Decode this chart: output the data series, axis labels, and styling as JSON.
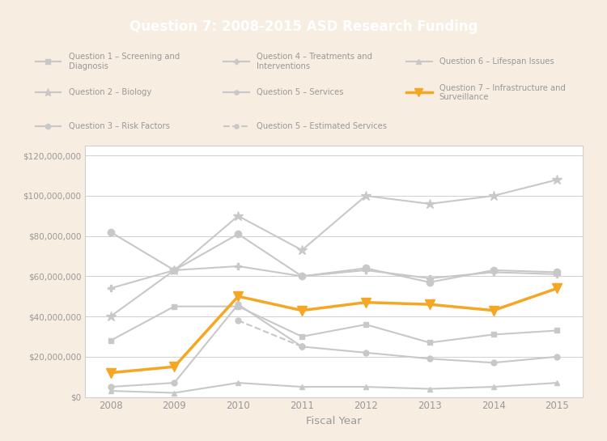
{
  "title": "Question 7: 2008-2015 ASD Research Funding",
  "xlabel": "Fiscal Year",
  "years": [
    2008,
    2009,
    2010,
    2011,
    2012,
    2013,
    2014,
    2015
  ],
  "series": {
    "Q1_Screening": {
      "label": "Question 1 – Screening and\nDiagnosis",
      "values": [
        28000000,
        45000000,
        45000000,
        30000000,
        36000000,
        27000000,
        31000000,
        33000000
      ],
      "color": "#c8c8c8",
      "marker": "s",
      "linestyle": "-",
      "linewidth": 1.5,
      "markersize": 5
    },
    "Q2_Biology": {
      "label": "Question 2 – Biology",
      "values": [
        40000000,
        63000000,
        90000000,
        73000000,
        100000000,
        96000000,
        100000000,
        108000000
      ],
      "color": "#c8c8c8",
      "marker": "*",
      "linestyle": "-",
      "linewidth": 1.5,
      "markersize": 9
    },
    "Q3_Risk": {
      "label": "Question 3 – Risk Factors",
      "values": [
        82000000,
        63000000,
        81000000,
        60000000,
        64000000,
        57000000,
        63000000,
        62000000
      ],
      "color": "#c8c8c8",
      "marker": "o",
      "linestyle": "-",
      "linewidth": 1.5,
      "markersize": 6
    },
    "Q4_Treatments": {
      "label": "Question 4 – Treatments and\nInterventions",
      "values": [
        54000000,
        63000000,
        65000000,
        60000000,
        63000000,
        59000000,
        62000000,
        61000000
      ],
      "color": "#c8c8c8",
      "marker": "P",
      "linestyle": "-",
      "linewidth": 1.5,
      "markersize": 6
    },
    "Q5_Services": {
      "label": "Question 5 – Services",
      "values": [
        5000000,
        7000000,
        46000000,
        25000000,
        22000000,
        19000000,
        17000000,
        20000000
      ],
      "color": "#c8c8c8",
      "marker": "o",
      "linestyle": "-",
      "linewidth": 1.5,
      "markersize": 5
    },
    "Q5_EstServices": {
      "label": "Question 5 – Estimated Services",
      "values": [
        null,
        null,
        38000000,
        25000000,
        null,
        null,
        null,
        null
      ],
      "color": "#c8c8c8",
      "marker": "o",
      "linestyle": "--",
      "linewidth": 1.5,
      "markersize": 5
    },
    "Q6_Lifespan": {
      "label": "Question 6 – Lifespan Issues",
      "values": [
        3000000,
        2000000,
        7000000,
        5000000,
        5000000,
        4000000,
        5000000,
        7000000
      ],
      "color": "#c8c8c8",
      "marker": "^",
      "linestyle": "-",
      "linewidth": 1.5,
      "markersize": 5
    },
    "Q7_Infrastructure": {
      "label": "Question 7 – Infrastructure and\nSurveillance",
      "values": [
        12000000,
        15000000,
        50000000,
        43000000,
        47000000,
        46000000,
        43000000,
        54000000
      ],
      "color": "#f5a623",
      "marker": "v",
      "linestyle": "-",
      "linewidth": 2.5,
      "markersize": 9
    }
  },
  "ylim": [
    0,
    125000000
  ],
  "yticks": [
    0,
    20000000,
    40000000,
    60000000,
    80000000,
    100000000,
    120000000
  ],
  "background_color": "#ffffff",
  "title_bg_color": "#f5a623",
  "title_text_color": "#ffffff",
  "outer_bg_color": "#f7ede0",
  "grid_color": "#d0d0d0",
  "axis_text_color": "#999999",
  "legend_text_color": "#999999"
}
